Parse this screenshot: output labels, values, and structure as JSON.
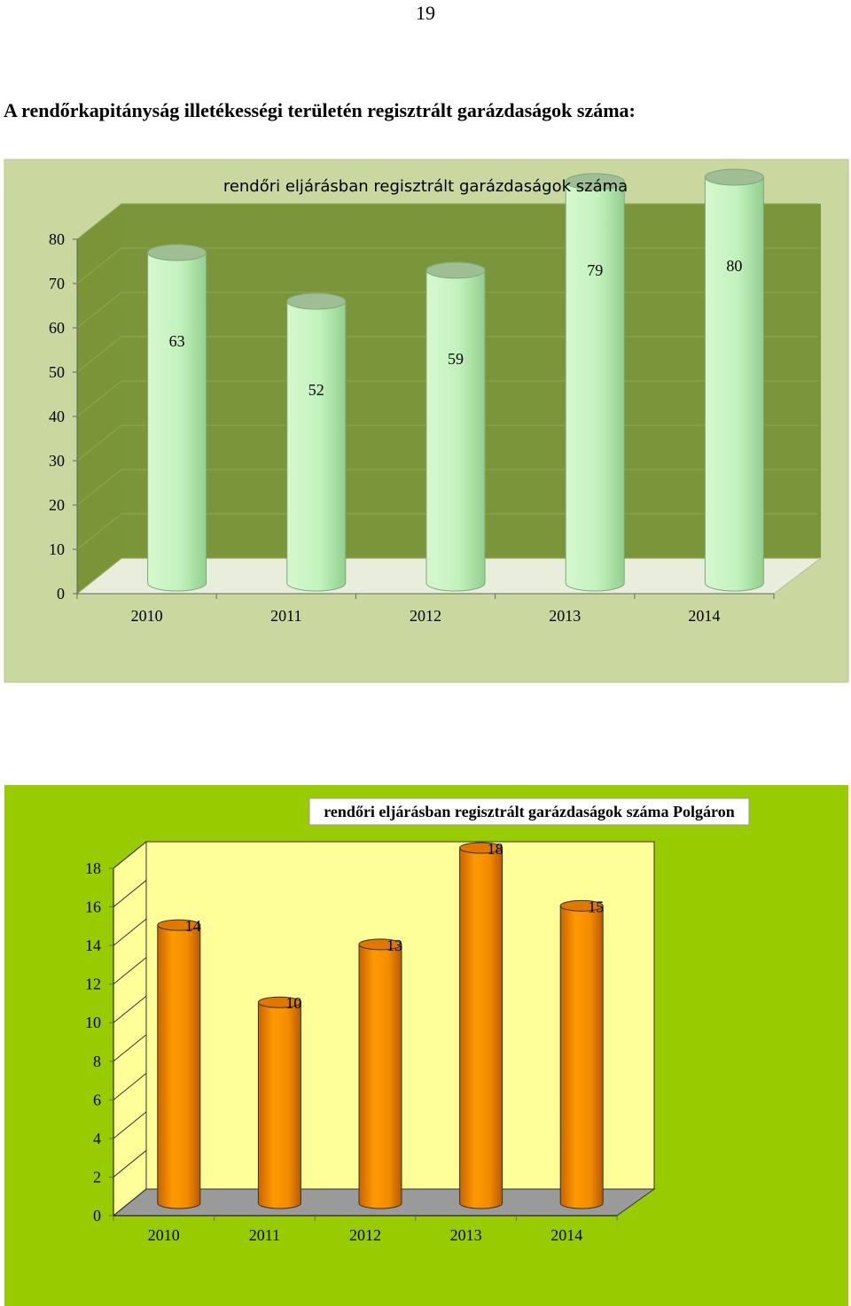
{
  "page": {
    "number": "19",
    "heading": "A rendőrkapitányság illetékességi területén regisztrált garázdaságok száma:"
  },
  "chart_data": [
    {
      "type": "bar",
      "style": "3d-cylinder",
      "title": "rendőri eljárásban regisztrált garázdaságok száma",
      "categories": [
        "2010",
        "2011",
        "2012",
        "2013",
        "2014"
      ],
      "values": [
        63,
        52,
        59,
        79,
        80
      ],
      "data_labels": [
        "63",
        "52",
        "59",
        "79",
        "80"
      ],
      "yticks": [
        "0",
        "10",
        "20",
        "30",
        "40",
        "50",
        "60",
        "70",
        "80"
      ],
      "ylim": [
        0,
        80
      ],
      "grid": true,
      "legend": "none",
      "colors": {
        "background": "#cad79e",
        "wall": "#7b963a",
        "bar": "#b8f0b0",
        "bar_dark": "#8fd48a"
      }
    },
    {
      "type": "bar",
      "style": "3d-cylinder",
      "title": "rendőri eljárásban regisztrált garázdaságok száma Polgáron",
      "categories": [
        "2010",
        "2011",
        "2012",
        "2013",
        "2014"
      ],
      "values": [
        14,
        10,
        13,
        18,
        15
      ],
      "data_labels": [
        "14",
        "10",
        "13",
        "18",
        "15"
      ],
      "yticks": [
        "0",
        "2",
        "4",
        "6",
        "8",
        "10",
        "12",
        "14",
        "16",
        "18"
      ],
      "ylim": [
        0,
        18
      ],
      "grid": false,
      "legend": "none",
      "colors": {
        "background": "#99cc00",
        "wall": "#ffff99",
        "bar": "#ff9900",
        "bar_dark": "#cc6600"
      }
    }
  ]
}
